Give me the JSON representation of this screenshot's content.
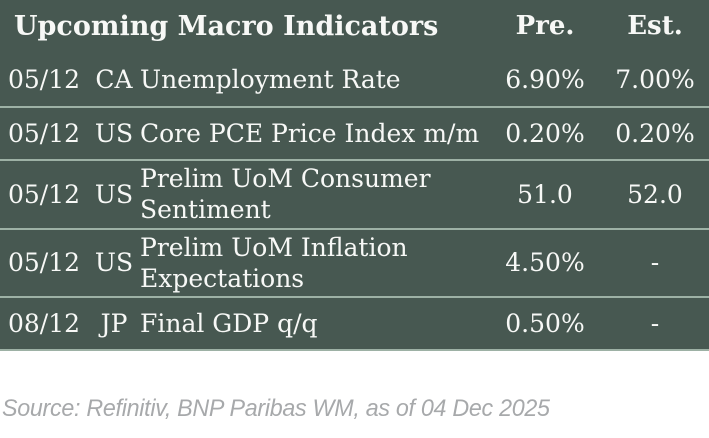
{
  "chart_data": {
    "type": "table",
    "title": "Upcoming Macro Indicators",
    "col_headers": {
      "pre": "Pre.",
      "est": "Est."
    },
    "rows": [
      {
        "date": "05/12",
        "country": "CA",
        "indicator": "Unemployment Rate",
        "pre": "6.90%",
        "est": "7.00%"
      },
      {
        "date": "05/12",
        "country": "US",
        "indicator": "Core PCE Price Index m/m",
        "pre": "0.20%",
        "est": "0.20%"
      },
      {
        "date": "05/12",
        "country": "US",
        "indicator": "Prelim UoM Consumer Sentiment",
        "pre": "51.0",
        "est": "52.0"
      },
      {
        "date": "05/12",
        "country": "US",
        "indicator": "Prelim UoM Inflation Expectations",
        "pre": "4.50%",
        "est": "-"
      },
      {
        "date": "08/12",
        "country": "JP",
        "indicator": "Final GDP q/q",
        "pre": "0.50%",
        "est": "-"
      }
    ],
    "source_note": "Source: Refinitiv, BNP Paribas WM, as of 04 Dec 2025",
    "layout": {
      "grid": "horizontal row dividers only",
      "header_position": "top",
      "value_alignment": "Pre. and Est. columns centered"
    }
  },
  "colors": {
    "table_background": "#475851",
    "row_divider": "#9DB1A5",
    "table_text": "#F7F8F6",
    "source_text": "#A7A9AB",
    "page_background": "#FFFFFF"
  }
}
